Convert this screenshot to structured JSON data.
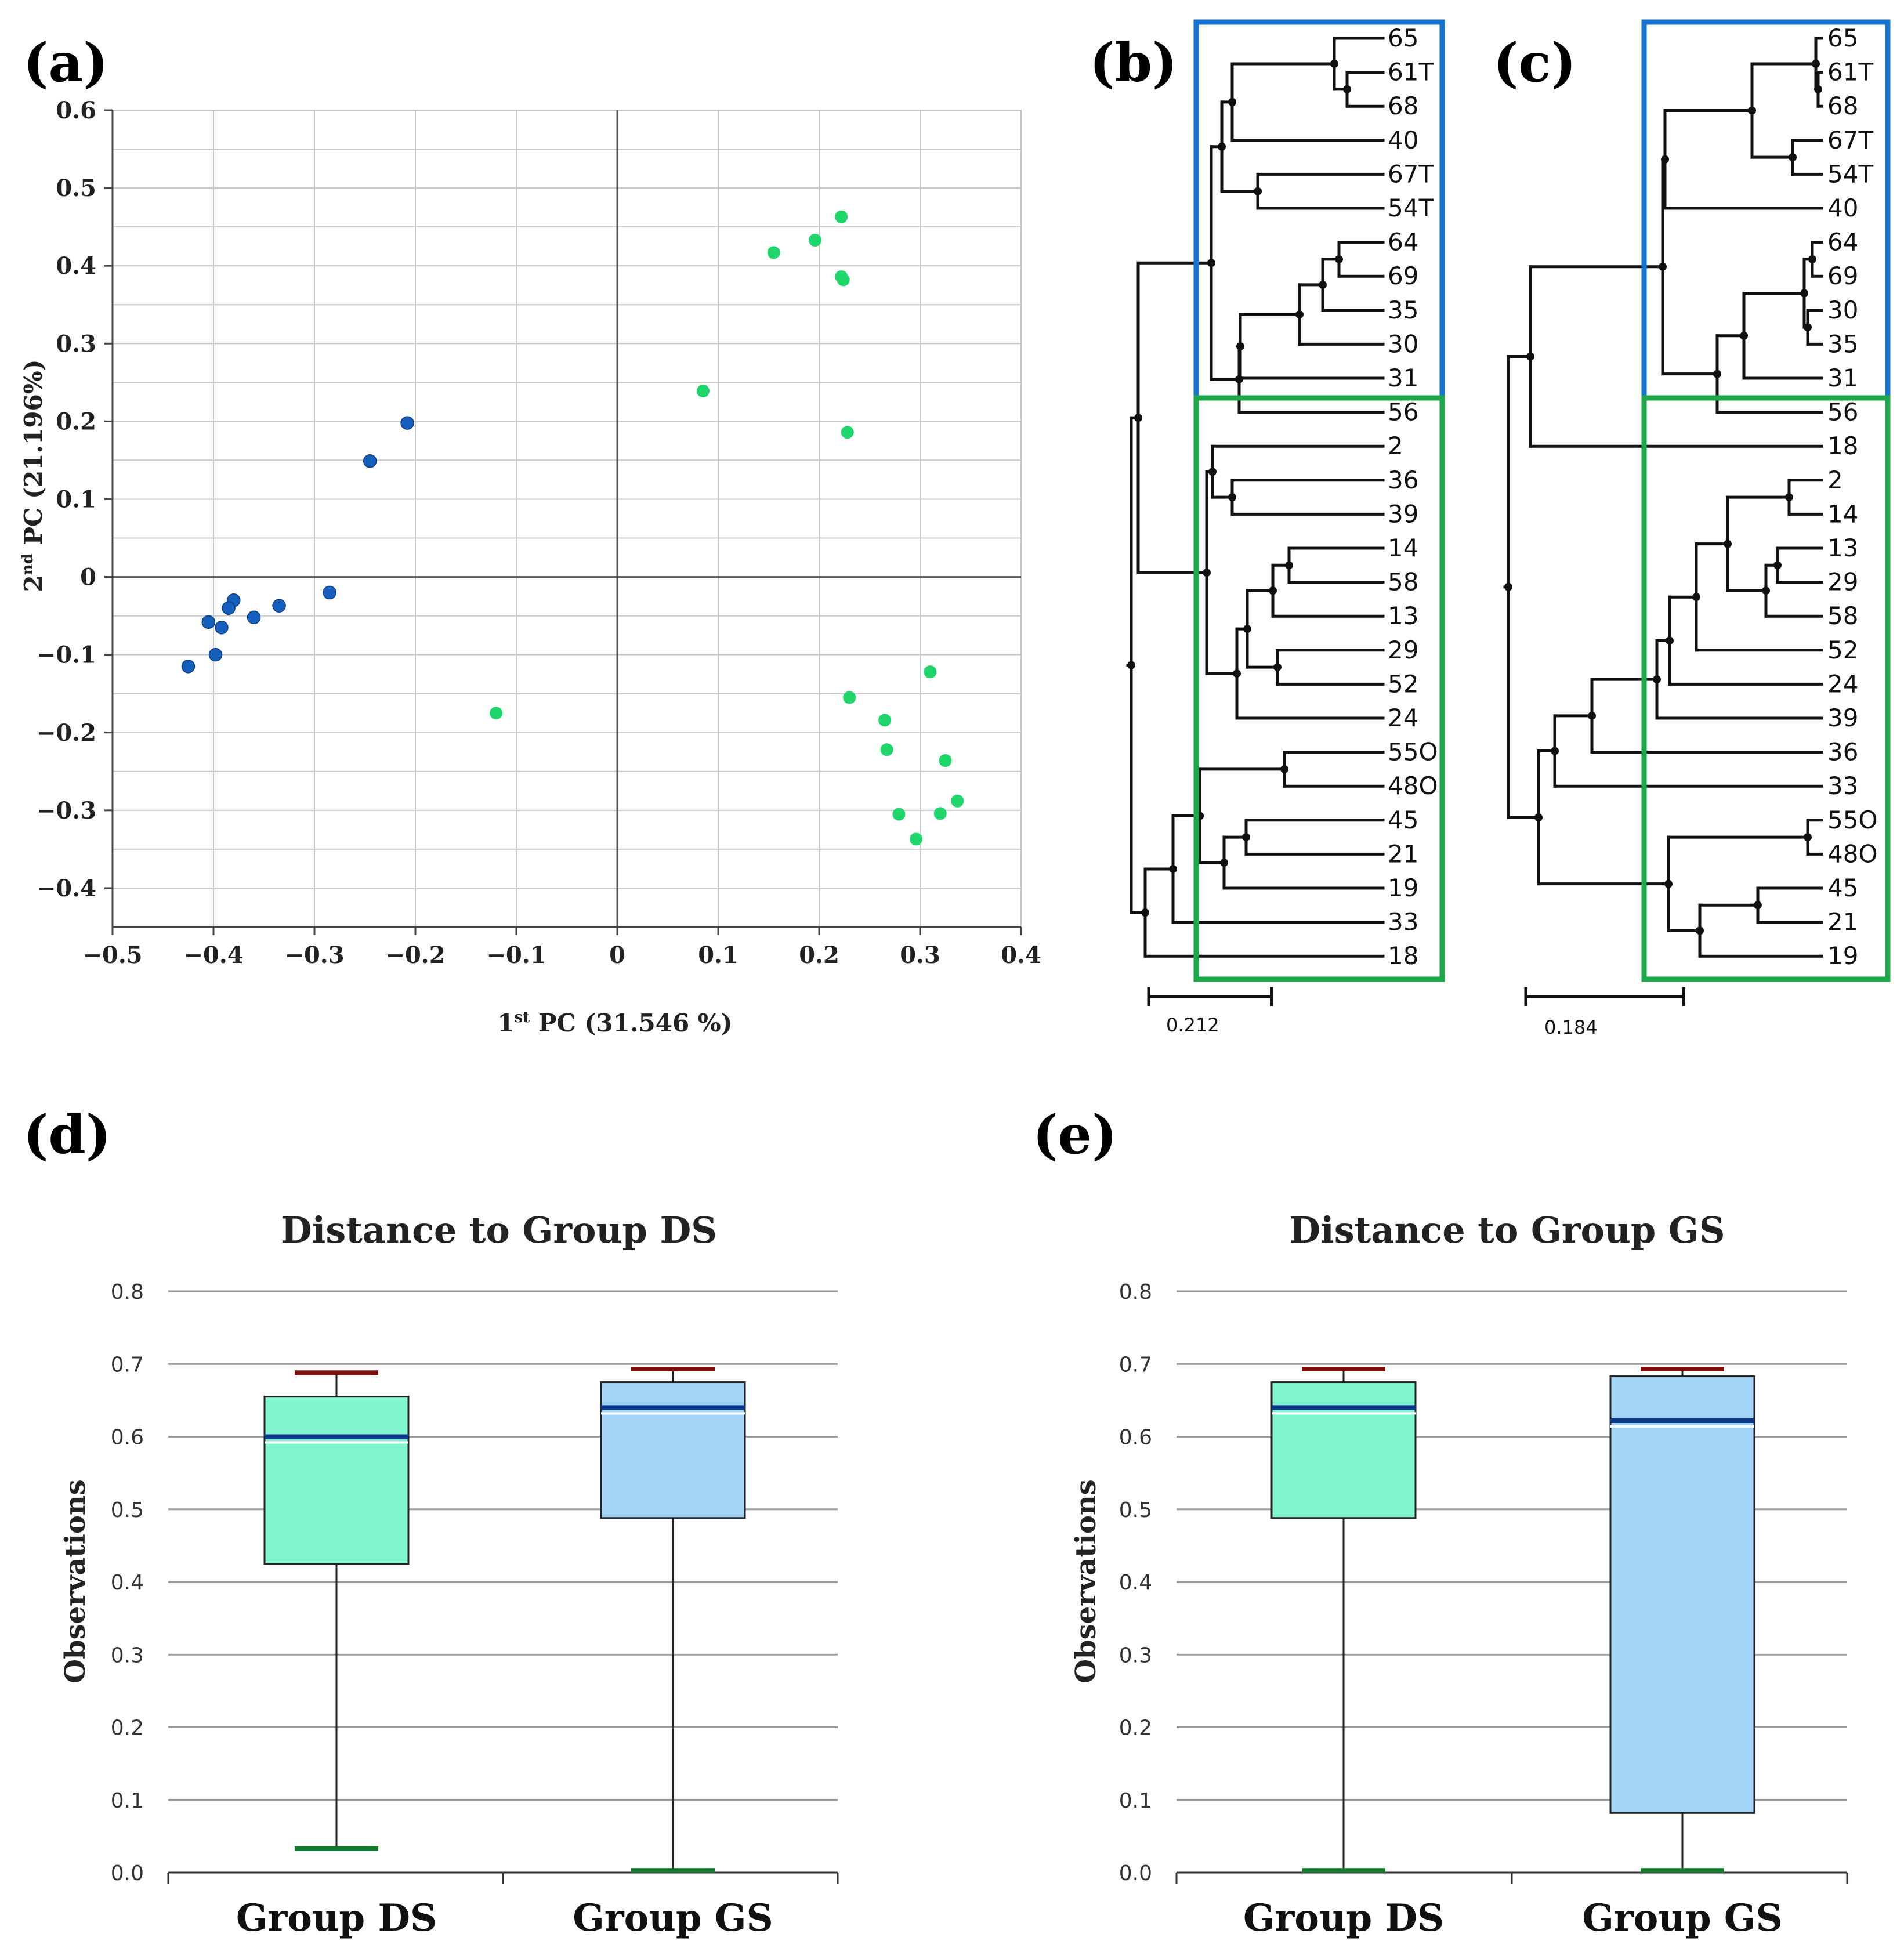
{
  "chart_data": [
    {
      "id": "a",
      "panel_label": "(a)",
      "type": "scatter",
      "title": "",
      "xlabel_main": "1",
      "xlabel_sup": "st",
      "xlabel_rest": " PC (31.546 %)",
      "ylabel_main": "2",
      "ylabel_sup": "nd",
      "ylabel_rest": " PC (21.196%)",
      "xlim": [
        -0.5,
        0.4
      ],
      "ylim": [
        -0.45,
        0.6
      ],
      "xticks": [
        -0.5,
        -0.4,
        -0.3,
        -0.2,
        -0.1,
        0,
        0.1,
        0.2,
        0.3,
        0.4
      ],
      "xtick_labels": [
        "−0.5",
        "−0.4",
        "−0.3",
        "−0.2",
        "−0.1",
        "0",
        "0.1",
        "0.2",
        "0.3",
        "0.4"
      ],
      "yticks": [
        0.6,
        0.5,
        0.4,
        0.3,
        0.2,
        0.1,
        0,
        -0.1,
        -0.2,
        -0.3,
        -0.4
      ],
      "ytick_labels": [
        "0.6",
        "0.5",
        "0.4",
        "0.3",
        "0.2",
        "0.1",
        "0",
        "−0.1",
        "−0.2",
        "−0.3",
        "−0.4"
      ],
      "grid": true,
      "series": [
        {
          "name": "blue group",
          "color": "#1560bd",
          "points": [
            [
              -0.208,
              0.198
            ],
            [
              -0.245,
              0.149
            ],
            [
              -0.285,
              -0.02
            ],
            [
              -0.335,
              -0.037
            ],
            [
              -0.36,
              -0.052
            ],
            [
              -0.38,
              -0.03
            ],
            [
              -0.385,
              -0.04
            ],
            [
              -0.392,
              -0.065
            ],
            [
              -0.405,
              -0.058
            ],
            [
              -0.398,
              -0.1
            ],
            [
              -0.425,
              -0.115
            ]
          ]
        },
        {
          "name": "green group",
          "color": "#1fd66a",
          "points": [
            [
              0.222,
              0.463
            ],
            [
              0.196,
              0.433
            ],
            [
              0.155,
              0.417
            ],
            [
              0.222,
              0.386
            ],
            [
              0.224,
              0.382
            ],
            [
              0.085,
              0.239
            ],
            [
              0.228,
              0.186
            ],
            [
              -0.12,
              -0.175
            ],
            [
              0.31,
              -0.122
            ],
            [
              0.23,
              -0.155
            ],
            [
              0.265,
              -0.184
            ],
            [
              0.267,
              -0.222
            ],
            [
              0.325,
              -0.236
            ],
            [
              0.337,
              -0.288
            ],
            [
              0.32,
              -0.304
            ],
            [
              0.279,
              -0.305
            ],
            [
              0.296,
              -0.337
            ]
          ]
        }
      ]
    },
    {
      "id": "b",
      "panel_label": "(b)",
      "type": "dendrogram",
      "leaves": [
        "65",
        "61T",
        "68",
        "40",
        "67T",
        "54T",
        "64",
        "69",
        "35",
        "30",
        "31",
        "56",
        "2",
        "36",
        "39",
        "14",
        "58",
        "13",
        "29",
        "52",
        "24",
        "55O",
        "48O",
        "45",
        "21",
        "19",
        "33",
        "18"
      ],
      "scale_label": "0.212",
      "blue_box_color": "#1874cd",
      "green_box_color": "#1fa84a"
    },
    {
      "id": "c",
      "panel_label": "(c)",
      "type": "dendrogram",
      "leaves": [
        "65",
        "61T",
        "68",
        "67T",
        "54T",
        "40",
        "64",
        "69",
        "30",
        "35",
        "31",
        "56",
        "18",
        "2",
        "14",
        "13",
        "29",
        "58",
        "52",
        "24",
        "39",
        "36",
        "33",
        "55O",
        "48O",
        "45",
        "21",
        "19"
      ],
      "scale_label": "0.184",
      "blue_box_color": "#1874cd",
      "green_box_color": "#1fa84a"
    },
    {
      "id": "d",
      "panel_label": "(d)",
      "type": "box",
      "title": "Distance to Group DS",
      "ylabel": "Observations",
      "ylim": [
        0,
        0.8
      ],
      "yticks": [
        0.8,
        0.7,
        0.6,
        0.5,
        0.4,
        0.3,
        0.2,
        0.1,
        0.0
      ],
      "ytick_labels": [
        "0.8",
        "0.7",
        "0.6",
        "0.5",
        "0.4",
        "0.3",
        "0.2",
        "0.1",
        "0.0"
      ],
      "categories": [
        "Group DS",
        "Group GS"
      ],
      "boxes": [
        {
          "min": 0.033,
          "q1": 0.425,
          "median": 0.6,
          "q3": 0.655,
          "max": 0.688,
          "color": "#7ff5d0"
        },
        {
          "min": 0.003,
          "q1": 0.488,
          "median": 0.64,
          "q3": 0.675,
          "max": 0.693,
          "color": "#a3d3f7"
        }
      ]
    },
    {
      "id": "e",
      "panel_label": "(e)",
      "type": "box",
      "title": "Distance to Group GS",
      "ylabel": "Observations",
      "ylim": [
        0,
        0.8
      ],
      "yticks": [
        0.8,
        0.7,
        0.6,
        0.5,
        0.4,
        0.3,
        0.2,
        0.1,
        0.0
      ],
      "ytick_labels": [
        "0.8",
        "0.7",
        "0.6",
        "0.5",
        "0.4",
        "0.3",
        "0.2",
        "0.1",
        "0.0"
      ],
      "categories": [
        "Group DS",
        "Group GS"
      ],
      "boxes": [
        {
          "min": 0.003,
          "q1": 0.488,
          "median": 0.64,
          "q3": 0.675,
          "max": 0.693,
          "color": "#7ff5d0"
        },
        {
          "min": 0.003,
          "q1": 0.082,
          "median": 0.622,
          "q3": 0.683,
          "max": 0.693,
          "color": "#a3d3f7"
        }
      ]
    }
  ]
}
